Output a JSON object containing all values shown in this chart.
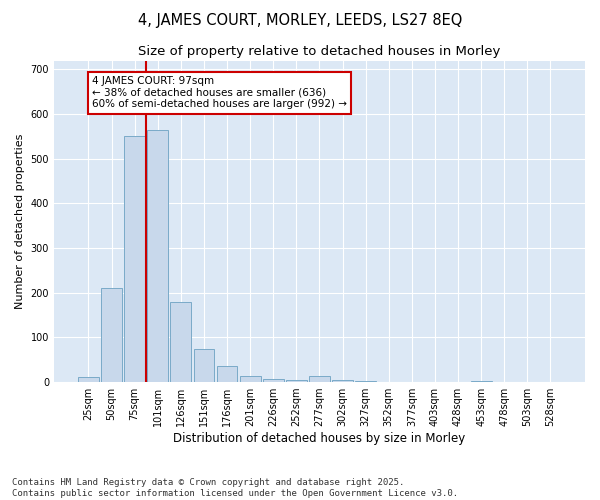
{
  "title1": "4, JAMES COURT, MORLEY, LEEDS, LS27 8EQ",
  "title2": "Size of property relative to detached houses in Morley",
  "xlabel": "Distribution of detached houses by size in Morley",
  "ylabel": "Number of detached properties",
  "bar_labels": [
    "25sqm",
    "50sqm",
    "75sqm",
    "101sqm",
    "126sqm",
    "151sqm",
    "176sqm",
    "201sqm",
    "226sqm",
    "252sqm",
    "277sqm",
    "302sqm",
    "327sqm",
    "352sqm",
    "377sqm",
    "403sqm",
    "428sqm",
    "453sqm",
    "478sqm",
    "503sqm",
    "528sqm"
  ],
  "bar_values": [
    12,
    210,
    550,
    565,
    180,
    73,
    35,
    13,
    8,
    4,
    13,
    5,
    3,
    1,
    0,
    0,
    0,
    3,
    0,
    0,
    0
  ],
  "bar_color": "#c8d8eb",
  "bar_edge_color": "#7aaac8",
  "vline_color": "#cc0000",
  "vline_x_index": 2.5,
  "annotation_text": "4 JAMES COURT: 97sqm\n← 38% of detached houses are smaller (636)\n60% of semi-detached houses are larger (992) →",
  "annotation_box_facecolor": "#ffffff",
  "annotation_box_edgecolor": "#cc0000",
  "ylim": [
    0,
    720
  ],
  "yticks": [
    0,
    100,
    200,
    300,
    400,
    500,
    600,
    700
  ],
  "plot_bg_color": "#dce8f5",
  "fig_bg_color": "#ffffff",
  "footnote": "Contains HM Land Registry data © Crown copyright and database right 2025.\nContains public sector information licensed under the Open Government Licence v3.0.",
  "title1_fontsize": 10.5,
  "title2_fontsize": 9.5,
  "ylabel_fontsize": 8,
  "xlabel_fontsize": 8.5,
  "tick_fontsize": 7,
  "annot_fontsize": 7.5,
  "footnote_fontsize": 6.5
}
